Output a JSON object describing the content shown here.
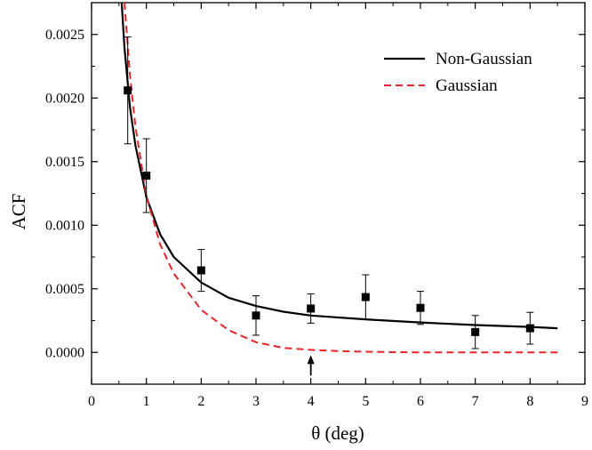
{
  "chart_data": {
    "type": "scatter",
    "xlabel": "θ (deg)",
    "ylabel": "ACF",
    "xlim": [
      0,
      9
    ],
    "ylim": [
      -0.00025,
      0.00275
    ],
    "xticks": [
      "0",
      "1",
      "2",
      "3",
      "4",
      "5",
      "6",
      "7",
      "8",
      "9"
    ],
    "yticks": [
      "0.0000",
      "0.0005",
      "0.0010",
      "0.0015",
      "0.0020",
      "0.0025"
    ],
    "legend_position": "top-right",
    "data_points": {
      "x": [
        0.66,
        1.0,
        2.0,
        3.0,
        4.0,
        5.0,
        6.0,
        7.0,
        8.0
      ],
      "y": [
        0.00206,
        0.00139,
        0.000645,
        0.00029,
        0.000345,
        0.000435,
        0.00035,
        0.00016,
        0.00019
      ],
      "yerr": [
        0.00042,
        0.00029,
        0.000165,
        0.000155,
        0.000115,
        0.000175,
        0.00013,
        0.00013,
        0.000125
      ]
    },
    "series": [
      {
        "name": "Non-Gaussian",
        "color": "#000000",
        "style": "solid",
        "x": [
          0.55,
          0.6,
          0.7,
          0.8,
          1.0,
          1.25,
          1.5,
          2.0,
          2.5,
          3.0,
          3.5,
          4.0,
          5.0,
          6.0,
          7.0,
          8.0,
          8.5
        ],
        "y": [
          0.00275,
          0.0024,
          0.00193,
          0.00163,
          0.00122,
          0.00093,
          0.00075,
          0.00055,
          0.00043,
          0.000365,
          0.00032,
          0.00029,
          0.00026,
          0.000235,
          0.000215,
          0.0002,
          0.00019
        ]
      },
      {
        "name": "Gaussian",
        "color": "#e8232a",
        "style": "dashed",
        "x": [
          0.6,
          0.7,
          0.8,
          1.0,
          1.25,
          1.5,
          2.0,
          2.5,
          3.0,
          3.5,
          4.0,
          4.5,
          5.0,
          6.0,
          7.0,
          8.0,
          8.5
        ],
        "y": [
          0.00275,
          0.00218,
          0.00178,
          0.00123,
          0.00085,
          0.00062,
          0.000335,
          0.000175,
          8e-05,
          3.5e-05,
          2e-05,
          1e-05,
          5e-06,
          0.0,
          0.0,
          0.0,
          0.0
        ]
      }
    ],
    "annotation": {
      "type": "arrow",
      "x": 4.0,
      "points": "up"
    }
  }
}
